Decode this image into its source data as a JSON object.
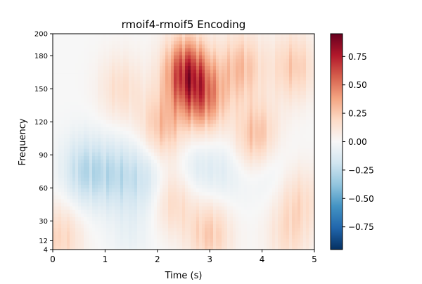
{
  "chart_data": {
    "type": "heatmap",
    "title": "rmoif4-rmoif5 Encoding",
    "xlabel": "Time (s)",
    "ylabel": "Frequency",
    "xlim": [
      0,
      5
    ],
    "ylim": [
      4,
      200
    ],
    "x_ticks": [
      0,
      1,
      2,
      3,
      4,
      5
    ],
    "y_ticks": [
      4,
      12,
      30,
      60,
      90,
      120,
      150,
      180,
      200
    ],
    "colormap": "RdBu_r",
    "colorbar": {
      "range": [
        -0.95,
        0.95
      ],
      "ticks": [
        -0.75,
        -0.5,
        -0.25,
        0.0,
        0.25,
        0.5,
        0.75
      ],
      "tick_labels": [
        "−0.75",
        "−0.50",
        "−0.25",
        "0.00",
        "0.25",
        "0.50",
        "0.75"
      ]
    },
    "regions": [
      {
        "t": 2.55,
        "f": 165,
        "value": 0.8
      },
      {
        "t": 2.9,
        "f": 140,
        "value": 0.5
      },
      {
        "t": 2.1,
        "f": 115,
        "value": 0.35
      },
      {
        "t": 3.6,
        "f": 170,
        "value": 0.35
      },
      {
        "t": 3.9,
        "f": 105,
        "value": 0.4
      },
      {
        "t": 4.6,
        "f": 170,
        "value": 0.3
      },
      {
        "t": 1.3,
        "f": 150,
        "value": 0.2
      },
      {
        "t": 0.6,
        "f": 75,
        "value": -0.3
      },
      {
        "t": 1.2,
        "f": 72,
        "value": -0.25
      },
      {
        "t": 1.8,
        "f": 70,
        "value": -0.22
      },
      {
        "t": 2.7,
        "f": 78,
        "value": -0.15
      },
      {
        "t": 3.3,
        "f": 75,
        "value": -0.12
      },
      {
        "t": 4.1,
        "f": 82,
        "value": -0.15
      },
      {
        "t": 2.3,
        "f": 50,
        "value": 0.25
      },
      {
        "t": 3.0,
        "f": 18,
        "value": 0.3
      },
      {
        "t": 0.15,
        "f": 15,
        "value": 0.25
      },
      {
        "t": 4.5,
        "f": 15,
        "value": 0.18
      },
      {
        "t": 4.7,
        "f": 50,
        "value": 0.2
      },
      {
        "t": 1.5,
        "f": 20,
        "value": -0.08
      }
    ]
  }
}
